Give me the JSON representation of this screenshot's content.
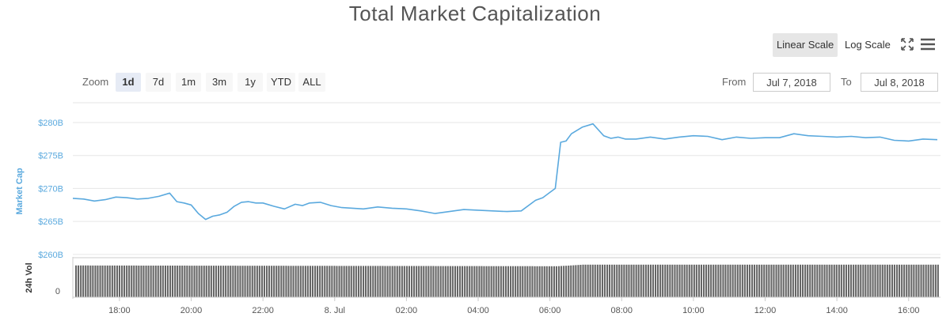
{
  "title": "Total Market Capitalization",
  "scale": {
    "linear_label": "Linear Scale",
    "log_label": "Log Scale",
    "active": "linear"
  },
  "icons": {
    "fullscreen": "fullscreen-icon",
    "menu": "hamburger-menu-icon"
  },
  "zoom": {
    "label": "Zoom",
    "options": [
      "1d",
      "7d",
      "1m",
      "3m",
      "1y",
      "YTD",
      "ALL"
    ],
    "active": "1d"
  },
  "range": {
    "from_label": "From",
    "from_value": "Jul 7, 2018",
    "to_label": "To",
    "to_value": "Jul 8, 2018"
  },
  "colors": {
    "line": "#5aa9de",
    "volume": "#666666",
    "grid": "#e6e6e6",
    "axis_title": "#5aa9de",
    "volume_title": "#333333"
  },
  "chart_data": {
    "type": "line",
    "ylabel": "Market Cap",
    "y_ticks": [
      "$260B",
      "$265B",
      "$270B",
      "$275B",
      "$280B"
    ],
    "y_tick_values": [
      260,
      265,
      270,
      275,
      280
    ],
    "ylim": [
      259.5,
      283
    ],
    "x_ticks": [
      "18:00",
      "20:00",
      "22:00",
      "8. Jul",
      "02:00",
      "04:00",
      "06:00",
      "08:00",
      "10:00",
      "12:00",
      "14:00",
      "16:00"
    ],
    "x_tick_hours": [
      18,
      20,
      22,
      24,
      26,
      28,
      30,
      32,
      34,
      36,
      38,
      40
    ],
    "xlim_hours": [
      16.7,
      40.8
    ],
    "grid": true,
    "legend": "none",
    "series": [
      {
        "x": [
          16.7,
          17.0,
          17.3,
          17.6,
          17.9,
          18.2,
          18.5,
          18.8,
          19.1,
          19.4,
          19.6,
          19.8,
          20.0,
          20.2,
          20.4,
          20.6,
          20.8,
          21.0,
          21.2,
          21.4,
          21.6,
          21.8,
          22.0,
          22.3,
          22.6,
          22.9,
          23.1,
          23.3,
          23.6,
          23.9,
          24.2,
          24.5,
          24.8,
          25.2,
          25.6,
          26.0,
          26.4,
          26.8,
          27.2,
          27.6,
          28.0,
          28.4,
          28.8,
          29.2,
          29.6,
          29.8,
          30.0,
          30.15,
          30.3,
          30.45,
          30.6,
          30.9,
          31.2,
          31.5,
          31.7,
          31.9,
          32.1,
          32.4,
          32.8,
          33.2,
          33.6,
          34.0,
          34.4,
          34.8,
          35.2,
          35.6,
          36.0,
          36.4,
          36.8,
          37.2,
          37.6,
          38.0,
          38.4,
          38.8,
          39.2,
          39.6,
          40.0,
          40.4,
          40.8
        ],
        "y": [
          268.5,
          268.4,
          268.1,
          268.3,
          268.7,
          268.6,
          268.4,
          268.5,
          268.8,
          269.3,
          268.0,
          267.8,
          267.5,
          266.2,
          265.3,
          265.8,
          266.0,
          266.4,
          267.3,
          267.9,
          268.0,
          267.8,
          267.8,
          267.3,
          266.9,
          267.6,
          267.4,
          267.8,
          267.9,
          267.4,
          267.1,
          267.0,
          266.9,
          267.2,
          267.0,
          266.9,
          266.6,
          266.2,
          266.5,
          266.8,
          266.7,
          266.6,
          266.5,
          266.6,
          268.2,
          268.6,
          269.4,
          270.0,
          277.0,
          277.2,
          278.3,
          279.3,
          279.8,
          278.0,
          277.6,
          277.8,
          277.5,
          277.5,
          277.8,
          277.5,
          277.8,
          278.0,
          277.9,
          277.4,
          277.8,
          277.6,
          277.7,
          277.7,
          278.3,
          278.0,
          277.9,
          277.8,
          277.9,
          277.7,
          277.8,
          277.3,
          277.2,
          277.5,
          277.4
        ]
      }
    ],
    "volume": {
      "ylabel": "24h Vol",
      "y_tick": "0",
      "level_fraction_x": [
        16.7,
        30.2,
        30.9,
        40.8
      ],
      "level_fraction_y": [
        0.82,
        0.8,
        0.84,
        0.84
      ]
    }
  }
}
